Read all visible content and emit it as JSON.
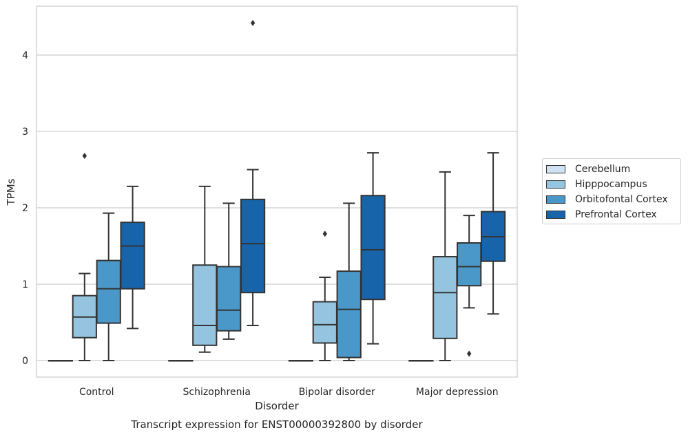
{
  "chart_data": {
    "type": "box",
    "title": "Transcript expression for ENST00000392800 by disorder",
    "xlabel": "Disorder",
    "ylabel": "TPMs",
    "ylim": [
      -0.22,
      4.65
    ],
    "yticks": [
      0,
      1,
      2,
      3,
      4
    ],
    "grid": "horizontal",
    "legend_position": "right",
    "categories": [
      "Control",
      "Schizophrenia",
      "Bipolar disorder",
      "Major depression"
    ],
    "series": [
      {
        "name": "Cerebellum",
        "color": "#d0e1f2",
        "boxes": [
          {
            "whisker_low": 0,
            "q1": 0,
            "median": 0,
            "q3": 0,
            "whisker_high": 0,
            "outliers": []
          },
          {
            "whisker_low": 0,
            "q1": 0,
            "median": 0,
            "q3": 0,
            "whisker_high": 0,
            "outliers": []
          },
          {
            "whisker_low": 0,
            "q1": 0,
            "median": 0,
            "q3": 0,
            "whisker_high": 0,
            "outliers": []
          },
          {
            "whisker_low": 0,
            "q1": 0,
            "median": 0,
            "q3": 0,
            "whisker_high": 0,
            "outliers": []
          }
        ]
      },
      {
        "name": "Hipppocampus",
        "color": "#94c4df",
        "boxes": [
          {
            "whisker_low": 0,
            "q1": 0.3,
            "median": 0.57,
            "q3": 0.85,
            "whisker_high": 1.14,
            "outliers": [
              2.68
            ]
          },
          {
            "whisker_low": 0.11,
            "q1": 0.2,
            "median": 0.46,
            "q3": 1.25,
            "whisker_high": 2.28,
            "outliers": []
          },
          {
            "whisker_low": 0,
            "q1": 0.23,
            "median": 0.47,
            "q3": 0.77,
            "whisker_high": 1.09,
            "outliers": [
              1.66
            ]
          },
          {
            "whisker_low": 0,
            "q1": 0.29,
            "median": 0.89,
            "q3": 1.36,
            "whisker_high": 2.47,
            "outliers": []
          }
        ]
      },
      {
        "name": "Orbitofontal Cortex",
        "color": "#4a98c9",
        "boxes": [
          {
            "whisker_low": 0,
            "q1": 0.49,
            "median": 0.94,
            "q3": 1.31,
            "whisker_high": 1.93,
            "outliers": []
          },
          {
            "whisker_low": 0.28,
            "q1": 0.39,
            "median": 0.66,
            "q3": 1.23,
            "whisker_high": 2.06,
            "outliers": []
          },
          {
            "whisker_low": 0,
            "q1": 0.04,
            "median": 0.67,
            "q3": 1.17,
            "whisker_high": 2.06,
            "outliers": []
          },
          {
            "whisker_low": 0.69,
            "q1": 0.98,
            "median": 1.23,
            "q3": 1.54,
            "whisker_high": 1.9,
            "outliers": [
              0.09
            ]
          }
        ]
      },
      {
        "name": "Prefrontal Cortex",
        "color": "#1764ab",
        "boxes": [
          {
            "whisker_low": 0.42,
            "q1": 0.94,
            "median": 1.5,
            "q3": 1.81,
            "whisker_high": 2.28,
            "outliers": []
          },
          {
            "whisker_low": 0.46,
            "q1": 0.89,
            "median": 1.53,
            "q3": 2.11,
            "whisker_high": 2.5,
            "outliers": [
              4.42
            ]
          },
          {
            "whisker_low": 0.22,
            "q1": 0.8,
            "median": 1.45,
            "q3": 2.16,
            "whisker_high": 2.72,
            "outliers": []
          },
          {
            "whisker_low": 0.61,
            "q1": 1.3,
            "median": 1.62,
            "q3": 1.95,
            "whisker_high": 2.72,
            "outliers": []
          }
        ]
      }
    ]
  }
}
